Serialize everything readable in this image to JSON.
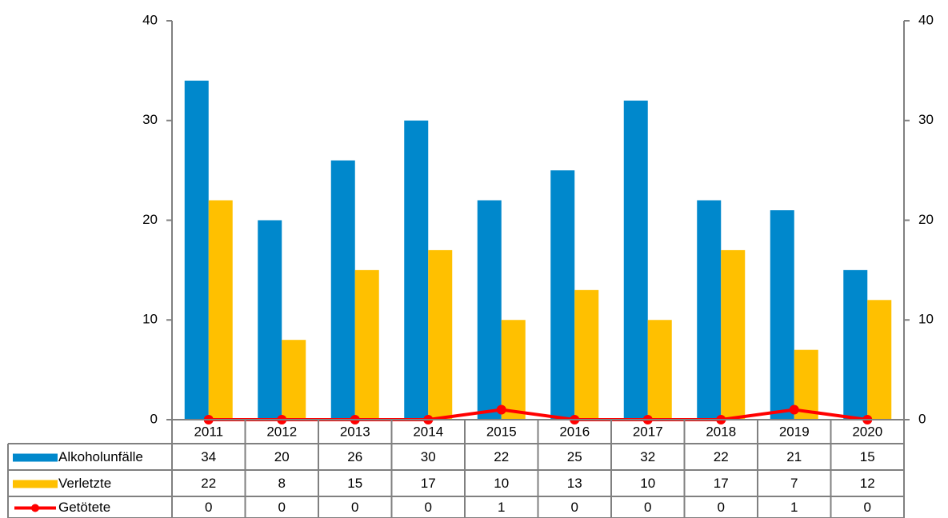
{
  "chart_data": {
    "type": "bar-line-table",
    "categories": [
      "2011",
      "2012",
      "2013",
      "2014",
      "2015",
      "2016",
      "2017",
      "2018",
      "2019",
      "2020"
    ],
    "series": [
      {
        "name": "Alkoholunfälle",
        "color": "#0088cc",
        "type": "bar",
        "values": [
          34,
          20,
          26,
          30,
          22,
          25,
          32,
          22,
          21,
          15
        ]
      },
      {
        "name": "Verletzte",
        "color": "#ffc000",
        "type": "bar",
        "values": [
          22,
          8,
          15,
          17,
          10,
          13,
          10,
          17,
          7,
          12
        ]
      },
      {
        "name": "Getötete",
        "color": "#ff0000",
        "type": "line",
        "axis": "y2",
        "values": [
          0,
          0,
          0,
          0,
          1,
          0,
          0,
          0,
          1,
          0
        ]
      }
    ],
    "ylim": [
      0,
      40
    ],
    "yticks": [
      0,
      10,
      20,
      30,
      40
    ],
    "y2lim": [
      0,
      40
    ],
    "y2ticks": [
      0,
      10,
      20,
      30,
      40
    ],
    "grid": false
  }
}
